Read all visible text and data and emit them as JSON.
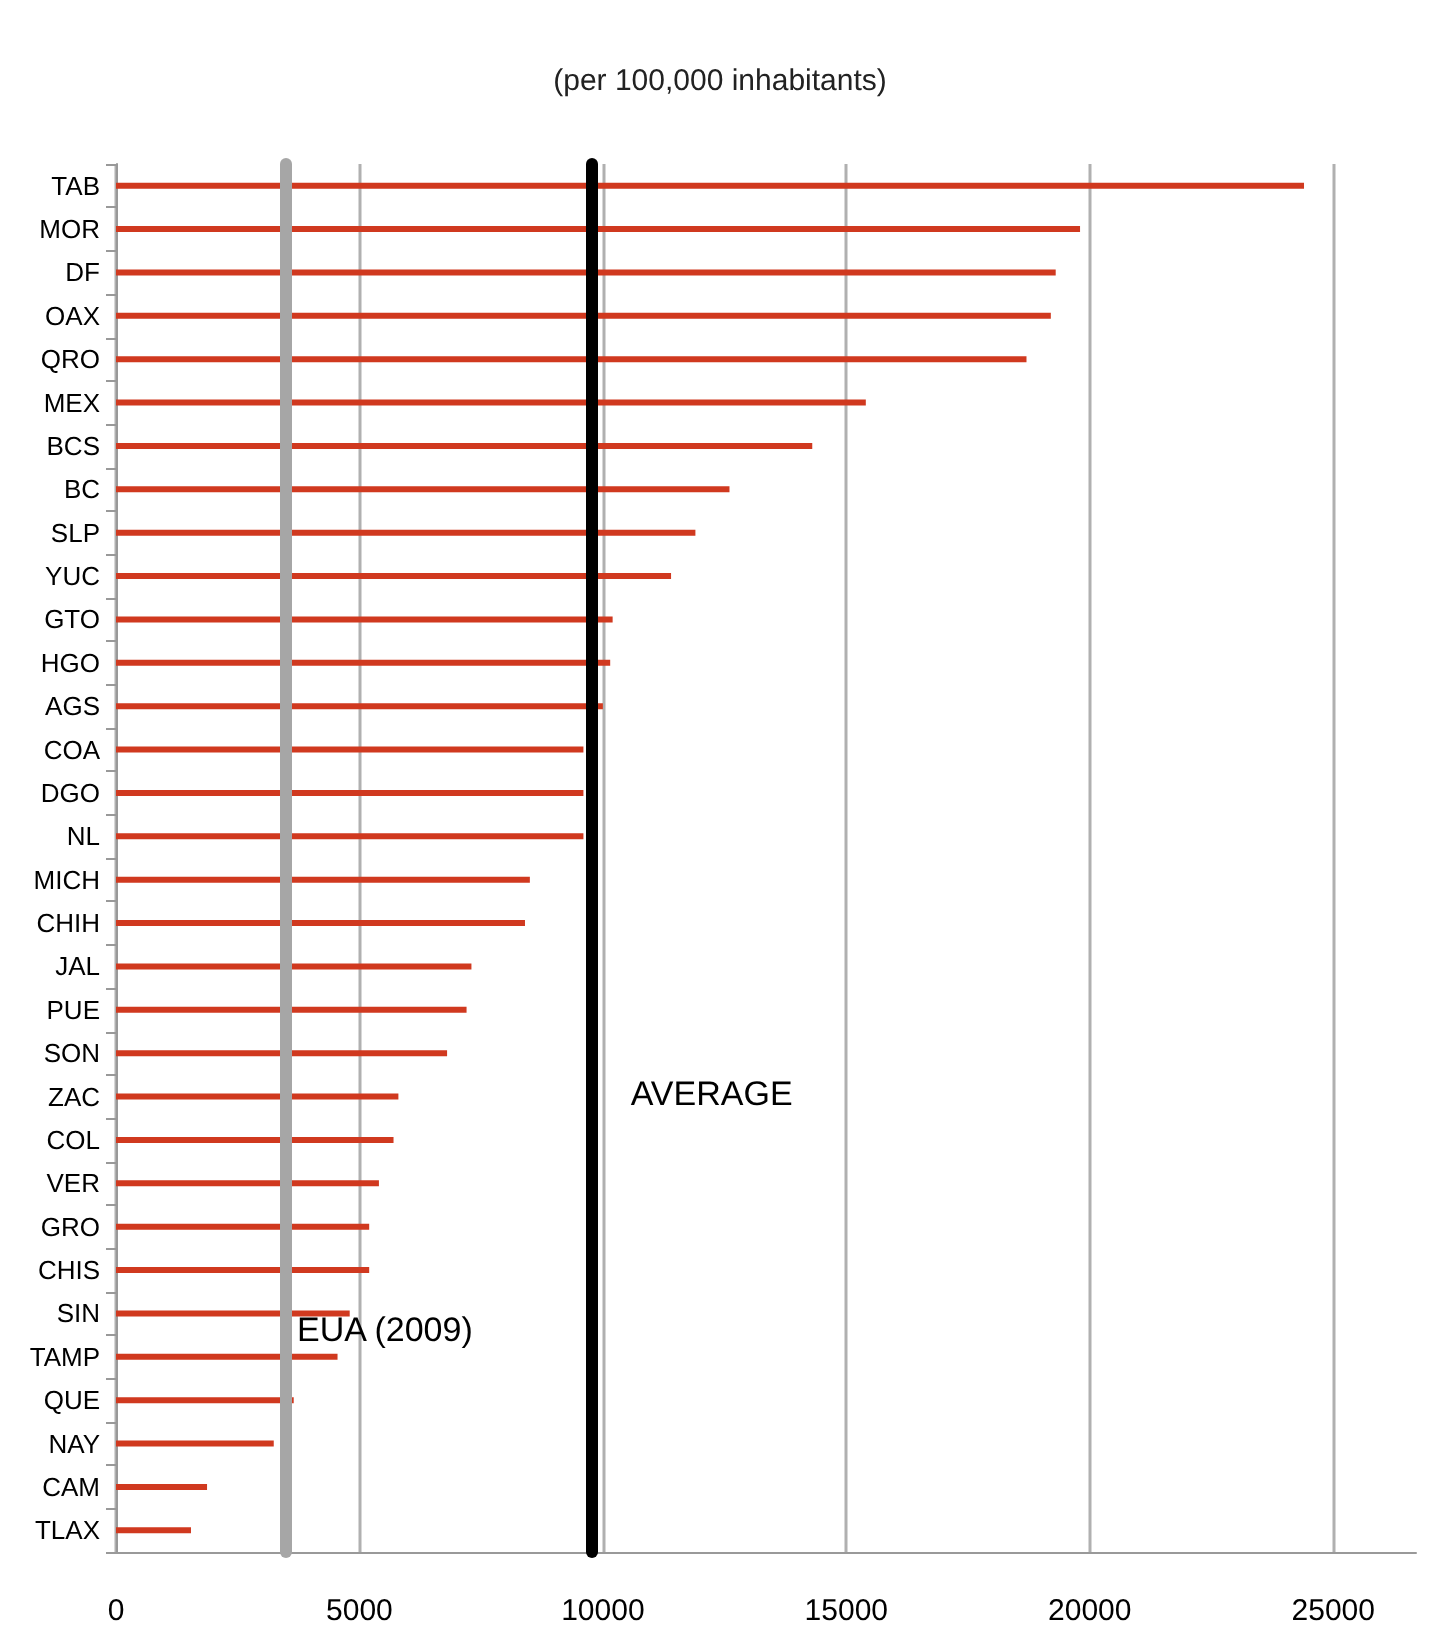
{
  "chart_data": {
    "type": "bar",
    "orientation": "horizontal",
    "subtitle": "(per 100,000 inhabitants)",
    "categories": [
      "TAB",
      "MOR",
      "DF",
      "OAX",
      "QRO",
      "MEX",
      "BCS",
      "BC",
      "SLP",
      "YUC",
      "GTO",
      "HGO",
      "AGS",
      "COA",
      "DGO",
      "NL",
      "MICH",
      "CHIH",
      "JAL",
      "PUE",
      "SON",
      "ZAC",
      "COL",
      "VER",
      "GRO",
      "CHIS",
      "SIN",
      "TAMP",
      "QUE",
      "NAY",
      "CAM",
      "TLAX"
    ],
    "values": [
      24400,
      19800,
      19300,
      19200,
      18700,
      15400,
      14300,
      12600,
      11900,
      11400,
      10200,
      10150,
      10000,
      9600,
      9600,
      9600,
      8500,
      8400,
      7300,
      7200,
      6800,
      5800,
      5700,
      5400,
      5200,
      5200,
      4800,
      4550,
      3650,
      3240,
      1870,
      1540
    ],
    "color": "#d0391f",
    "xlim": [
      0,
      26700
    ],
    "xticks": [
      0,
      5000,
      10000,
      15000,
      20000,
      25000
    ],
    "grid": "x",
    "ref_lines": [
      {
        "axis": "x",
        "value": 9750,
        "label": "AVERAGE",
        "color": "#000000"
      },
      {
        "axis": "x",
        "value": 3470,
        "label": "EUA (2009)",
        "color": "#a6a6a6"
      }
    ]
  }
}
